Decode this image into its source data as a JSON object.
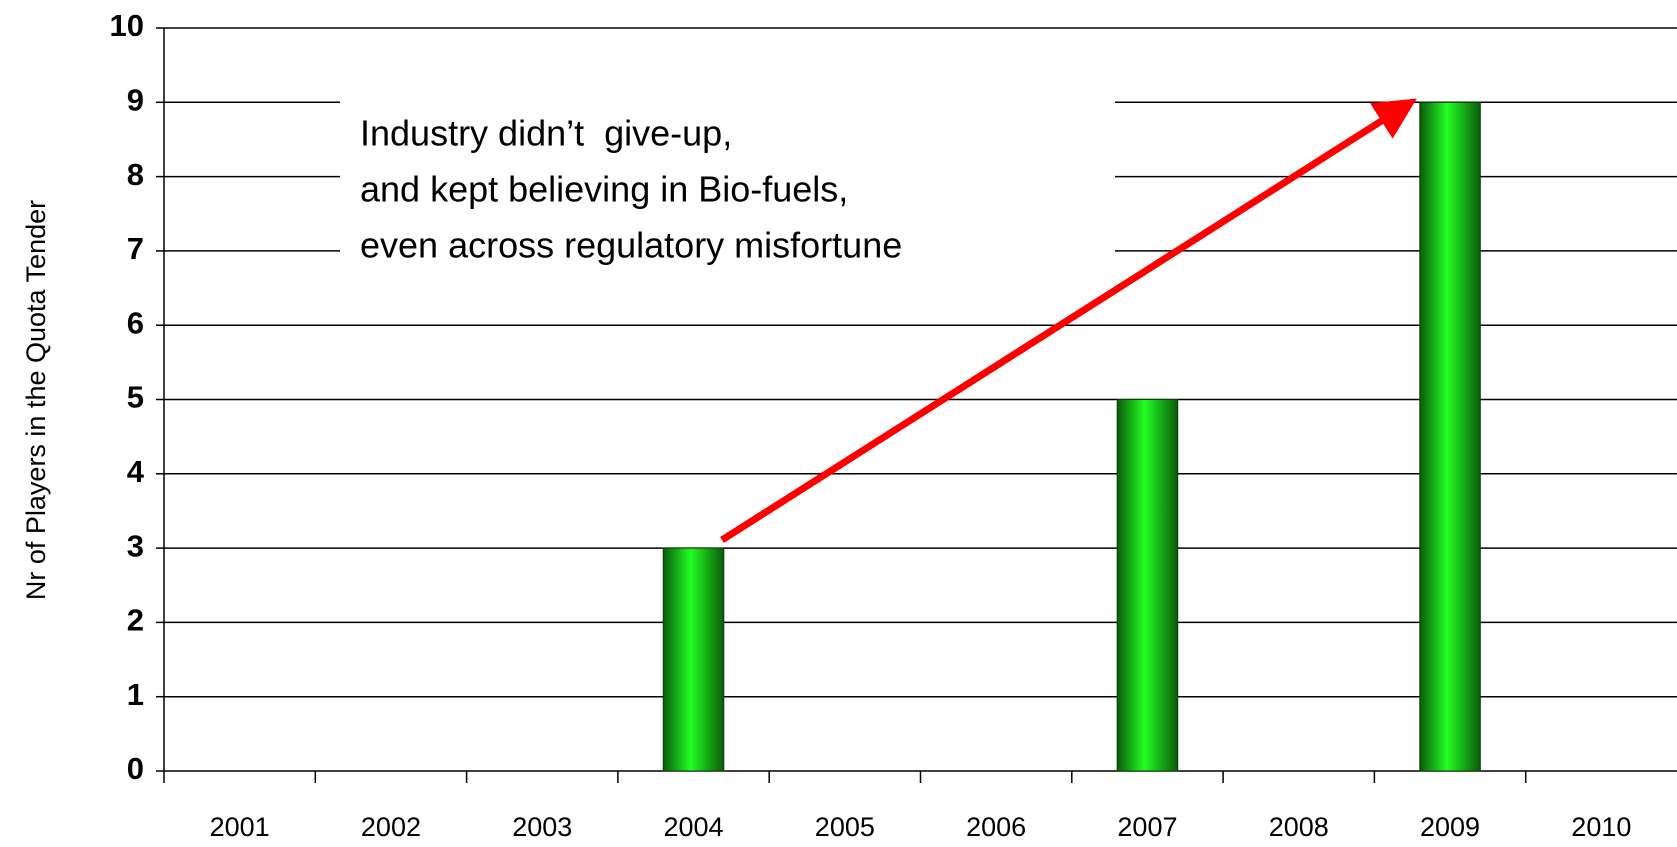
{
  "chart_data": {
    "type": "bar",
    "y_axis_label": "Nr of Players in the Quota Tender",
    "annotation": [
      "Industry didn’t  give-up,",
      "and kept believing in Bio-fuels,",
      "even across regulatory misfortune"
    ],
    "categories": [
      "2001",
      "2002",
      "2003",
      "2004",
      "2005",
      "2006",
      "2007",
      "2008",
      "2009",
      "2010"
    ],
    "values": [
      0,
      0,
      0,
      3,
      0,
      0,
      5,
      0,
      9,
      0
    ],
    "color": "#00e000",
    "ylim": [
      0,
      10
    ],
    "yticks": [
      0,
      1,
      2,
      3,
      4,
      5,
      6,
      7,
      8,
      9,
      10
    ],
    "grid": true
  }
}
